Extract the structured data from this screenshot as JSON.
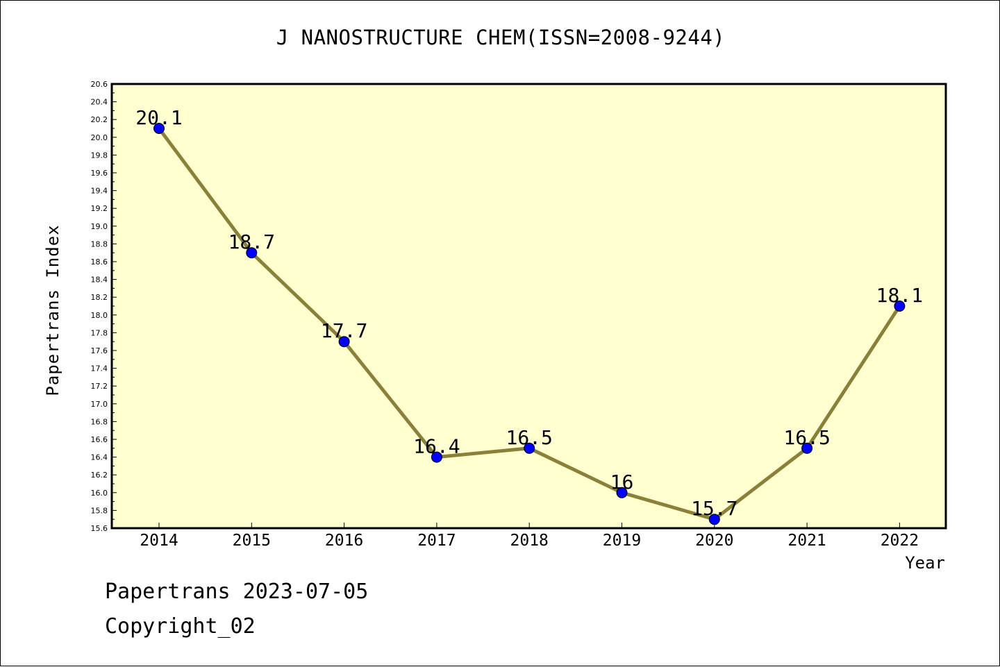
{
  "chart_data": {
    "type": "line",
    "title": "J NANOSTRUCTURE CHEM(ISSN=2008-9244)",
    "xlabel": "Year",
    "ylabel": "Papertrans Index",
    "categories": [
      "2014",
      "2015",
      "2016",
      "2017",
      "2018",
      "2019",
      "2020",
      "2021",
      "2022"
    ],
    "series": [
      {
        "values": [
          20.1,
          18.7,
          17.7,
          16.4,
          16.5,
          16.0,
          15.7,
          16.5,
          18.1
        ]
      }
    ],
    "data_labels": [
      "20.1",
      "18.7",
      "17.7",
      "16.4",
      "16.5",
      "16",
      "15.7",
      "16.5",
      "18.1"
    ],
    "ylim": [
      15.6,
      20.6
    ],
    "ytick_step": 0.2,
    "grid": false,
    "colors": {
      "plot_background": "#ffffd0",
      "line": "#8b8038",
      "marker": "#0000ff"
    }
  },
  "footer": {
    "date_line": "Papertrans 2023-07-05",
    "copyright_line": "Copyright_02"
  }
}
